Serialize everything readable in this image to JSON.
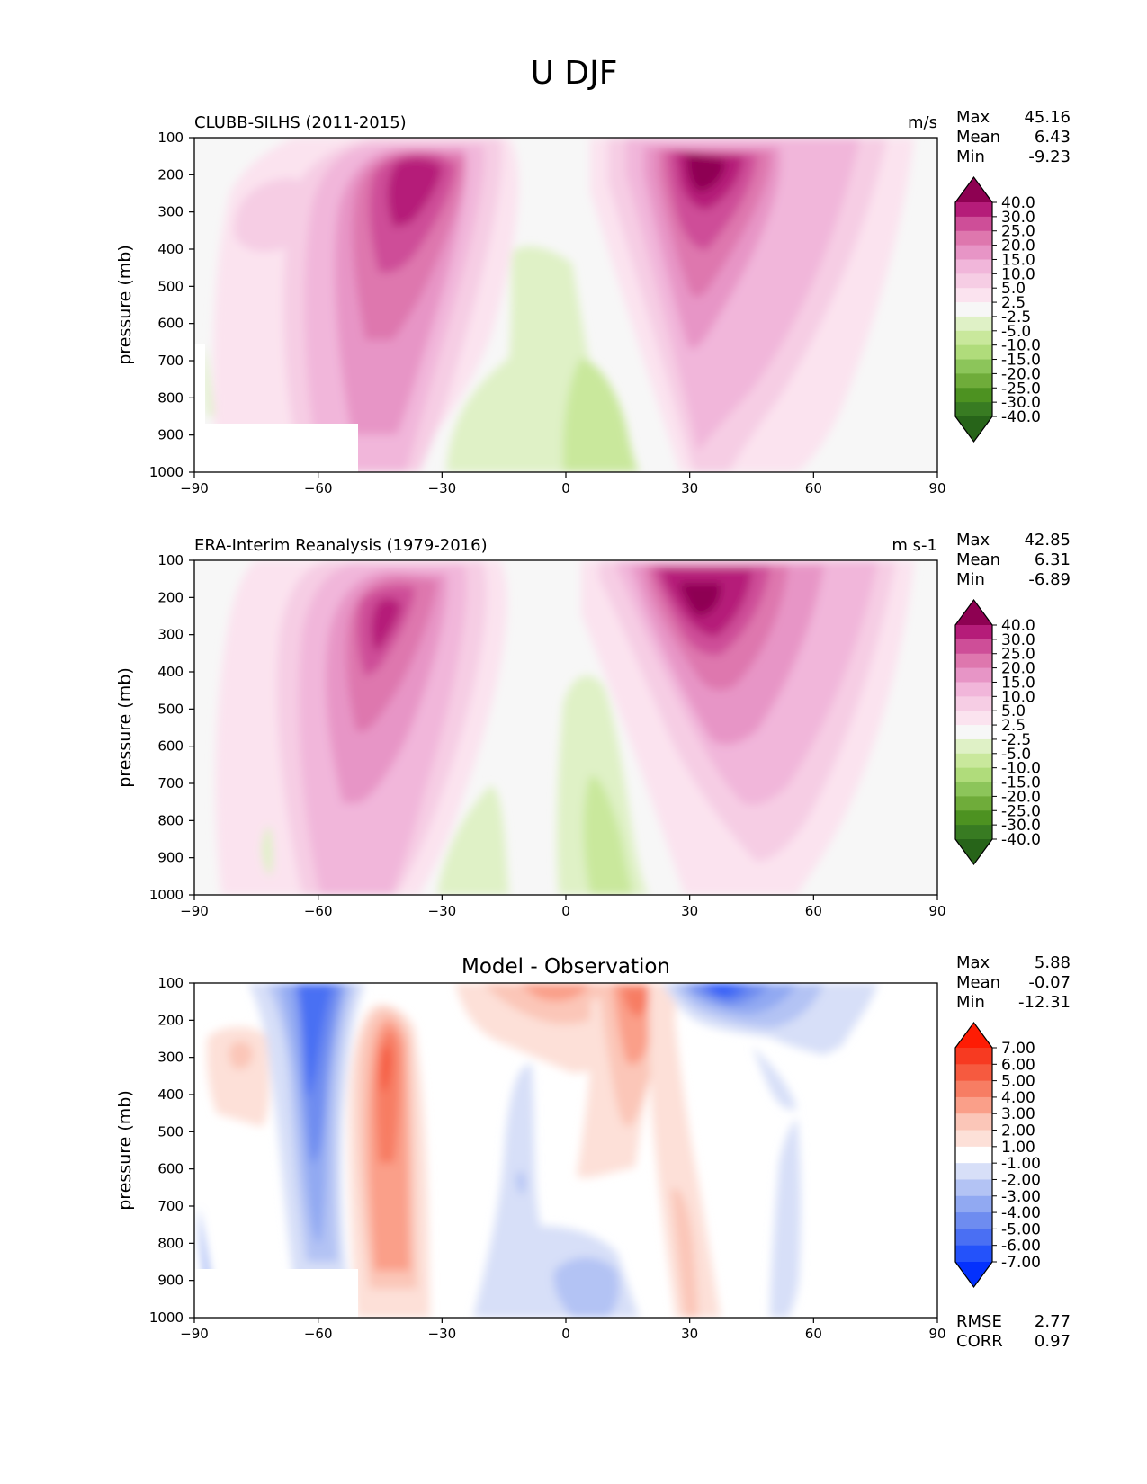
{
  "figure_title": "U DJF",
  "chart_data": [
    {
      "type": "heatmap",
      "title": "CLUBB-SILHS (2011-2015)",
      "units": "m/s",
      "ylabel": "pressure (mb)",
      "xlabel": "",
      "x_ticks": [
        "−90",
        "−60",
        "−30",
        "0",
        "30",
        "60",
        "90"
      ],
      "y_ticks": [
        "100",
        "200",
        "300",
        "400",
        "500",
        "600",
        "700",
        "800",
        "900",
        "1000"
      ],
      "xlim": [
        -90,
        90
      ],
      "ylim": [
        1000,
        100
      ],
      "stats": [
        {
          "label": "Max",
          "value": "45.16"
        },
        {
          "label": "Mean",
          "value": "6.43"
        },
        {
          "label": "Min",
          "value": "-9.23"
        }
      ],
      "levels": [
        -40,
        -30,
        -25,
        -20,
        -15,
        -10,
        -5,
        -2.5,
        2.5,
        5,
        10,
        15,
        20,
        25,
        30,
        40
      ],
      "colorbar_labels": [
        "40.0",
        "30.0",
        "25.0",
        "20.0",
        "15.0",
        "10.0",
        "5.0",
        "2.5",
        "-2.5",
        "-5.0",
        "-10.0",
        "-15.0",
        "-20.0",
        "-25.0",
        "-30.0",
        "-40.0"
      ],
      "colors": [
        "#276419",
        "#387b22",
        "#4d9221",
        "#6fac3a",
        "#8cc55a",
        "#b0dc7b",
        "#c9e89c",
        "#dff1c6",
        "#f7f7f7",
        "#fbe3ef",
        "#f6cde4",
        "#f1b6da",
        "#e795c6",
        "#de77ae",
        "#ce4e98",
        "#b51c79",
        "#8e0152"
      ],
      "missing_regions": [
        {
          "x": [
            -90,
            -50
          ],
          "p": [
            870,
            1000
          ]
        }
      ],
      "features": [
        {
          "x": -45,
          "p": 250,
          "value": 36
        },
        {
          "x": 27,
          "p": 230,
          "value": 45
        },
        {
          "x": 5,
          "p": 850,
          "value": -9
        },
        {
          "x": -20,
          "p": 950,
          "value": -6
        }
      ]
    },
    {
      "type": "heatmap",
      "title": "ERA-Interim Reanalysis (1979-2016)",
      "units": "m s-1",
      "ylabel": "pressure (mb)",
      "xlabel": "",
      "x_ticks": [
        "−90",
        "−60",
        "−30",
        "0",
        "30",
        "60",
        "90"
      ],
      "y_ticks": [
        "100",
        "200",
        "300",
        "400",
        "500",
        "600",
        "700",
        "800",
        "900",
        "1000"
      ],
      "xlim": [
        -90,
        90
      ],
      "ylim": [
        1000,
        100
      ],
      "stats": [
        {
          "label": "Max",
          "value": "42.85"
        },
        {
          "label": "Mean",
          "value": "6.31"
        },
        {
          "label": "Min",
          "value": "-6.89"
        }
      ],
      "levels": [
        -40,
        -30,
        -25,
        -20,
        -15,
        -10,
        -5,
        -2.5,
        2.5,
        5,
        10,
        15,
        20,
        25,
        30,
        40
      ],
      "colorbar_labels": [
        "40.0",
        "30.0",
        "25.0",
        "20.0",
        "15.0",
        "10.0",
        "5.0",
        "2.5",
        "-2.5",
        "-5.0",
        "-10.0",
        "-15.0",
        "-20.0",
        "-25.0",
        "-30.0",
        "-40.0"
      ],
      "colors": [
        "#276419",
        "#387b22",
        "#4d9221",
        "#6fac3a",
        "#8cc55a",
        "#b0dc7b",
        "#c9e89c",
        "#dff1c6",
        "#f7f7f7",
        "#fbe3ef",
        "#f6cde4",
        "#f1b6da",
        "#e795c6",
        "#de77ae",
        "#ce4e98",
        "#b51c79",
        "#8e0152"
      ],
      "missing_regions": [],
      "features": [
        {
          "x": -48,
          "p": 250,
          "value": 33
        },
        {
          "x": 31,
          "p": 210,
          "value": 42
        },
        {
          "x": 8,
          "p": 850,
          "value": -6
        }
      ]
    },
    {
      "type": "heatmap",
      "title": "Model - Observation",
      "units": "",
      "ylabel": "pressure (mb)",
      "xlabel": "",
      "x_ticks": [
        "−90",
        "−60",
        "−30",
        "0",
        "30",
        "60",
        "90"
      ],
      "y_ticks": [
        "100",
        "200",
        "300",
        "400",
        "500",
        "600",
        "700",
        "800",
        "900",
        "1000"
      ],
      "xlim": [
        -90,
        90
      ],
      "ylim": [
        1000,
        100
      ],
      "stats": [
        {
          "label": "Max",
          "value": "5.88"
        },
        {
          "label": "Mean",
          "value": "-0.07"
        },
        {
          "label": "Min",
          "value": "-12.31"
        }
      ],
      "extra_stats": [
        {
          "label": "RMSE",
          "value": "2.77"
        },
        {
          "label": "CORR",
          "value": "0.97"
        }
      ],
      "levels": [
        -7,
        -6,
        -5,
        -4,
        -3,
        -2,
        -1,
        1,
        2,
        3,
        4,
        5,
        6,
        7
      ],
      "colorbar_labels": [
        "7.00",
        "6.00",
        "5.00",
        "4.00",
        "3.00",
        "2.00",
        "1.00",
        "-1.00",
        "-2.00",
        "-3.00",
        "-4.00",
        "-5.00",
        "-6.00",
        "-7.00"
      ],
      "colors": [
        "#0431fd",
        "#2452fa",
        "#4a6ff3",
        "#6e8cf0",
        "#91a9f2",
        "#b3c3f4",
        "#d7dff8",
        "#ffffff",
        "#fde0d8",
        "#fbc6b8",
        "#fa9f89",
        "#f77d63",
        "#f65a3f",
        "#f73a21",
        "#fe1c04"
      ],
      "missing_regions": [
        {
          "x": [
            -90,
            -50
          ],
          "p": [
            870,
            1000
          ]
        }
      ],
      "features": [
        {
          "x": -60,
          "p": 250,
          "value": -5
        },
        {
          "x": -42,
          "p": 300,
          "value": 5
        },
        {
          "x": 40,
          "p": 120,
          "value": -12.31
        },
        {
          "x": 22,
          "p": 150,
          "value": 5.88
        }
      ]
    }
  ]
}
